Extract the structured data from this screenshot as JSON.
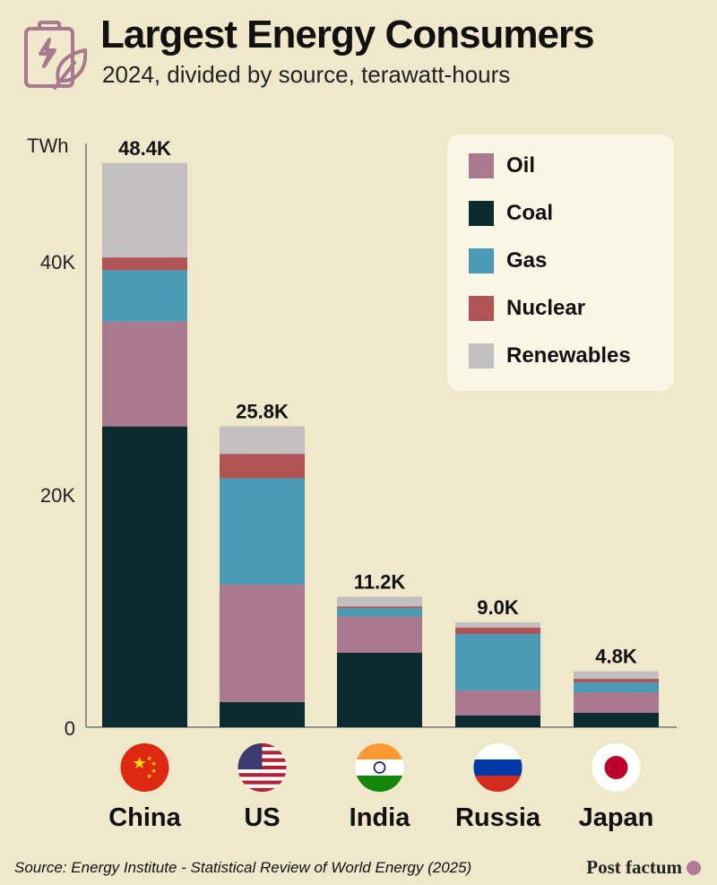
{
  "header": {
    "title": "Largest Energy Consumers",
    "subtitle": "2024, divided by source, terawatt-hours",
    "icon": "battery-leaf-icon"
  },
  "chart_data": {
    "type": "bar",
    "stacked": true,
    "title": "Largest Energy Consumers",
    "subtitle": "2024, divided by source, terawatt-hours",
    "ylabel": "TWh",
    "ylim": [
      0,
      50000
    ],
    "yticks": [
      {
        "value": 0,
        "label": "0"
      },
      {
        "value": 20000,
        "label": "20K"
      },
      {
        "value": 40000,
        "label": "40K"
      }
    ],
    "categories": [
      "China",
      "US",
      "India",
      "Russia",
      "Japan"
    ],
    "totals_labels": [
      "48.4K",
      "25.8K",
      "11.2K",
      "9.0K",
      "4.8K"
    ],
    "series": [
      {
        "name": "Coal",
        "color": "#0b2b2e",
        "values": [
          25800,
          2150,
          6400,
          1000,
          1230
        ]
      },
      {
        "name": "Oil",
        "color": "#a8798f",
        "values": [
          9000,
          10100,
          3100,
          2150,
          1770
        ]
      },
      {
        "name": "Gas",
        "color": "#4b9bb6",
        "values": [
          4400,
          9100,
          700,
          4850,
          850
        ]
      },
      {
        "name": "Nuclear",
        "color": "#b05456",
        "values": [
          1100,
          2100,
          150,
          550,
          300
        ]
      },
      {
        "name": "Renewables",
        "color": "#c1bfc0",
        "values": [
          8100,
          2350,
          850,
          450,
          650
        ]
      }
    ],
    "legend_order": [
      "Oil",
      "Coal",
      "Gas",
      "Nuclear",
      "Renewables"
    ],
    "legend_position": "top-right",
    "grid": false
  },
  "footer": {
    "source": "Source: Energy Institute - Statistical Review of World Energy (2025)",
    "brand": "Post factum"
  }
}
